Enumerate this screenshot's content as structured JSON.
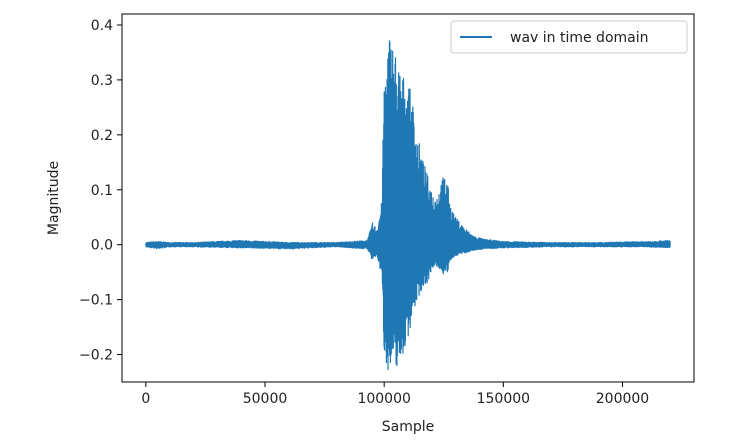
{
  "chart_data": {
    "type": "line",
    "xlabel": "Sample",
    "ylabel": "Magnitude",
    "xlim": [
      -10000,
      230000
    ],
    "ylim": [
      -0.25,
      0.42
    ],
    "xticks": [
      0,
      50000,
      100000,
      150000,
      200000
    ],
    "xtick_labels": [
      "0",
      "50000",
      "100000",
      "150000",
      "200000"
    ],
    "yticks": [
      0.4,
      0.3,
      0.2,
      0.1,
      0.0,
      -0.1,
      -0.2
    ],
    "ytick_labels": [
      "0.4",
      "0.3",
      "0.2",
      "0.1",
      "0.0",
      "−0.1",
      "−0.2"
    ],
    "grid": false,
    "legend_position": "top-right",
    "series": [
      {
        "name": "wav in time domain",
        "color": "#1f77b4",
        "envelope": {
          "x": [
            0,
            5000,
            10000,
            20000,
            40000,
            60000,
            80000,
            93000,
            95000,
            97000,
            99000,
            100000,
            102000,
            104000,
            106000,
            108000,
            110000,
            112000,
            114000,
            116000,
            118000,
            120000,
            122000,
            124000,
            126000,
            128000,
            130000,
            134000,
            138000,
            142000,
            150000,
            170000,
            190000,
            210000,
            220000
          ],
          "upper": [
            0.004,
            0.006,
            0.004,
            0.004,
            0.008,
            0.004,
            0.004,
            0.008,
            0.04,
            0.03,
            0.08,
            0.3,
            0.39,
            0.37,
            0.33,
            0.31,
            0.3,
            0.26,
            0.2,
            0.16,
            0.13,
            0.1,
            0.09,
            0.12,
            0.13,
            0.07,
            0.05,
            0.03,
            0.015,
            0.01,
            0.006,
            0.004,
            0.004,
            0.006,
            0.008
          ],
          "lower": [
            -0.004,
            -0.008,
            -0.004,
            -0.004,
            -0.006,
            -0.008,
            -0.004,
            -0.008,
            -0.03,
            -0.02,
            -0.06,
            -0.2,
            -0.235,
            -0.23,
            -0.22,
            -0.2,
            -0.17,
            -0.13,
            -0.1,
            -0.08,
            -0.07,
            -0.05,
            -0.04,
            -0.05,
            -0.06,
            -0.03,
            -0.02,
            -0.015,
            -0.01,
            -0.008,
            -0.006,
            -0.004,
            -0.004,
            -0.004,
            -0.006
          ]
        }
      }
    ]
  }
}
